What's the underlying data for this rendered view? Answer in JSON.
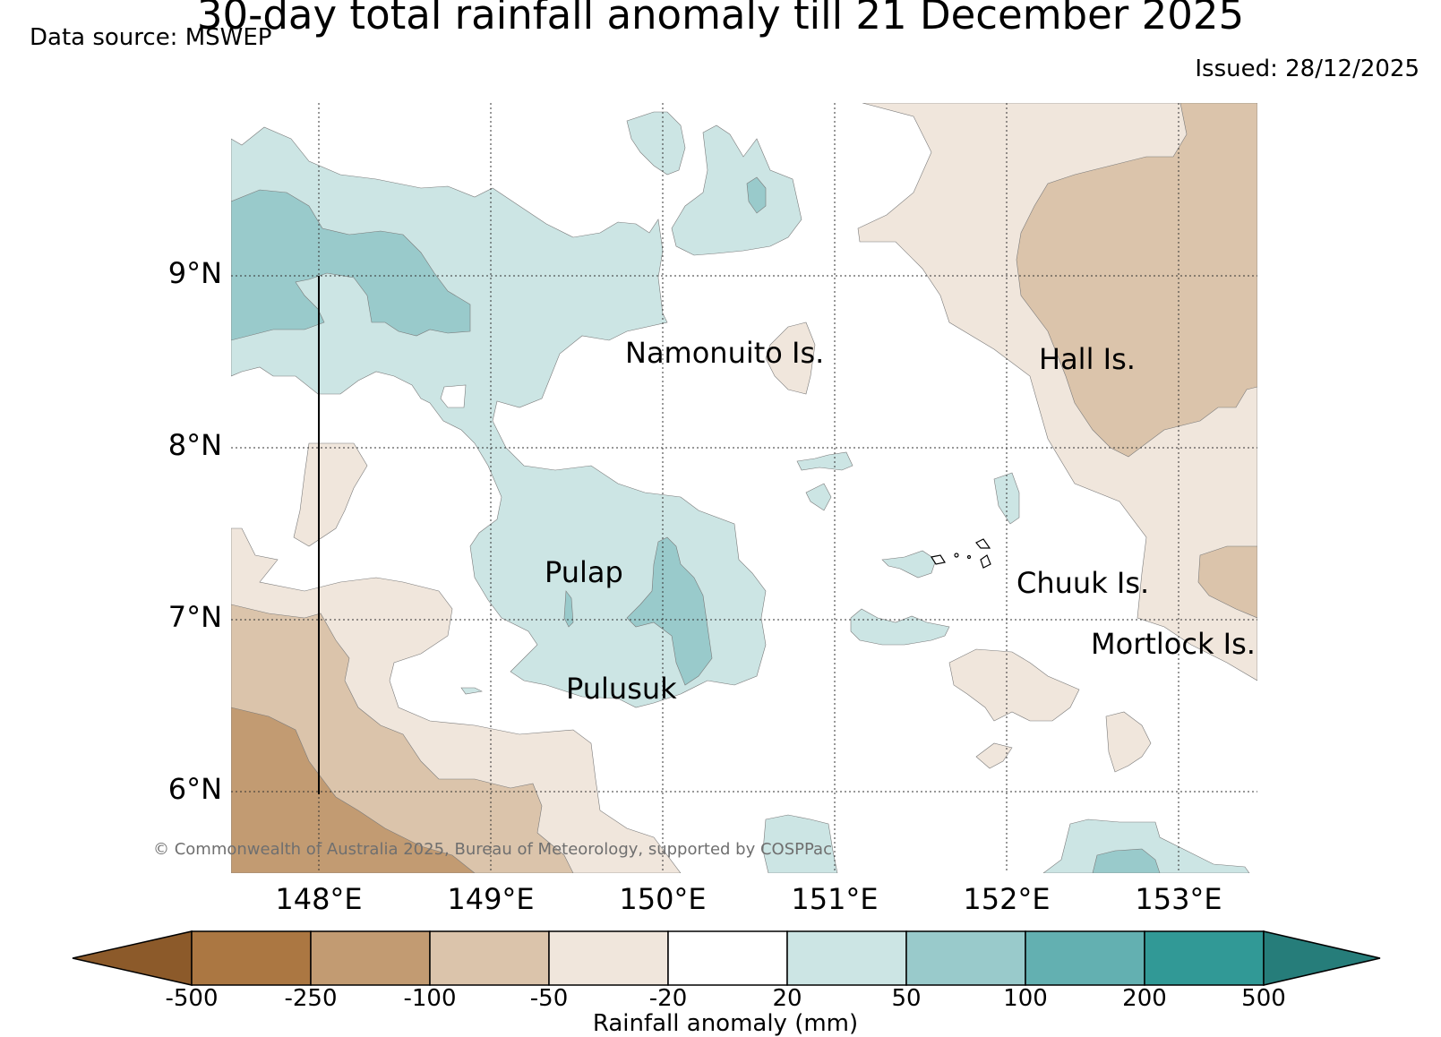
{
  "title": "30-day total rainfall anomaly till 21 December 2025",
  "data_source": "Data source: MSWEP",
  "issued": "Issued: 28/12/2025",
  "copyright": "© Commonwealth of Australia 2025, Bureau of Meteorology, supported by COSPPac",
  "map": {
    "latitude_labels": [
      "9°N",
      "8°N",
      "7°N",
      "6°N"
    ],
    "longitude_labels": [
      "148°E",
      "149°E",
      "150°E",
      "151°E",
      "152°E",
      "153°E"
    ],
    "place_labels": [
      "Namonuito Is.",
      "Hall Is.",
      "Pulap",
      "Chuuk Is.",
      "Mortlock Is.",
      "Pulusuk"
    ]
  },
  "colorbar": {
    "ticks": [
      "-500",
      "-250",
      "-100",
      "-50",
      "-20",
      "20",
      "50",
      "100",
      "200",
      "500"
    ],
    "label": "Rainfall anomaly (mm)",
    "colors": [
      "#8c5a2a",
      "#ab7742",
      "#c29b72",
      "#dbc4ab",
      "#f0e6dc",
      "#ffffff",
      "#cce5e4",
      "#99cacb",
      "#63b0b1",
      "#319996",
      "#267d7a"
    ]
  },
  "colors": {
    "dry_light": "#f0e6dc",
    "dry_mid": "#dbc4ab",
    "dry_dark": "#c29b72",
    "wet_light": "#cce5e4",
    "wet_mid": "#99cacb"
  }
}
